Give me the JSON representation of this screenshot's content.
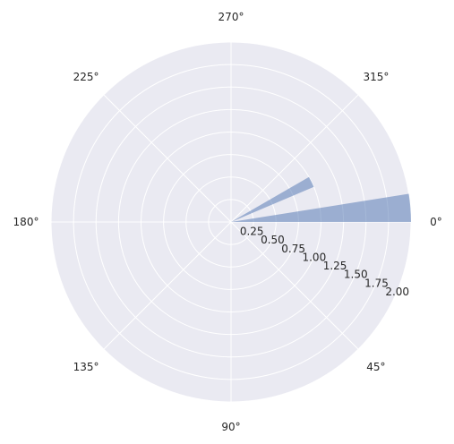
{
  "chart_data": {
    "type": "polar-bar",
    "theta_direction": "clockwise",
    "theta_zero": "east",
    "angle_ticks": [
      {
        "deg": 0,
        "label": "0°"
      },
      {
        "deg": 45,
        "label": "45°"
      },
      {
        "deg": 90,
        "label": "90°"
      },
      {
        "deg": 135,
        "label": "135°"
      },
      {
        "deg": 180,
        "label": "180°"
      },
      {
        "deg": 225,
        "label": "225°"
      },
      {
        "deg": 270,
        "label": "270°"
      },
      {
        "deg": 315,
        "label": "315°"
      }
    ],
    "radial_ticks": [
      {
        "value": 0.25,
        "label": "0.25"
      },
      {
        "value": 0.5,
        "label": "0.50"
      },
      {
        "value": 0.75,
        "label": "0.75"
      },
      {
        "value": 1.0,
        "label": "1.00"
      },
      {
        "value": 1.25,
        "label": "1.25"
      },
      {
        "value": 1.5,
        "label": "1.50"
      },
      {
        "value": 1.75,
        "label": "1.75"
      },
      {
        "value": 2.0,
        "label": "2.00"
      }
    ],
    "rlim": [
      0,
      2.0
    ],
    "bars": [
      {
        "theta_start_deg": 351,
        "theta_end_deg": 0,
        "value": 2.0
      },
      {
        "theta_start_deg": 330,
        "theta_end_deg": 337,
        "value": 1.0
      }
    ],
    "bar_color": "#4c72b0",
    "bar_alpha": 0.5,
    "background_color": "#eaeaf2",
    "grid_color": "#ffffff",
    "grid": true
  }
}
